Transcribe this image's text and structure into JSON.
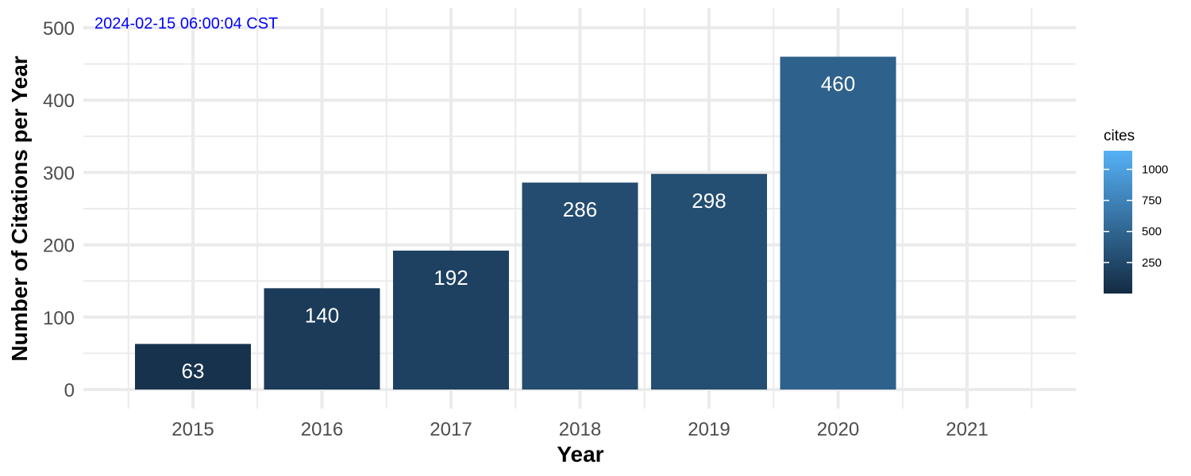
{
  "timestamp": "2024-02-15 06:00:04 CST",
  "colors": {
    "timestamp": "#0000ff",
    "grid": "#ebebeb",
    "bar_label": "#ffffff",
    "scale_low": "#132b43",
    "scale_high": "#56b1f7"
  },
  "chart_data": {
    "type": "bar",
    "title": "",
    "xlabel": "Year",
    "ylabel": "Number of Citations per Year",
    "categories": [
      "2015",
      "2016",
      "2017",
      "2018",
      "2019",
      "2020",
      "2021"
    ],
    "values": [
      63,
      140,
      192,
      286,
      298,
      460,
      null
    ],
    "data_labels": [
      "63",
      "140",
      "192",
      "286",
      "298",
      "460",
      ""
    ],
    "ylim": [
      0,
      500
    ],
    "yticks": [
      0,
      100,
      200,
      300,
      400,
      500
    ],
    "grid": true,
    "legend": {
      "title": "cites",
      "placement": "right",
      "type": "colorbar",
      "range": [
        0,
        1150
      ],
      "ticks": [
        250,
        500,
        750,
        1000
      ],
      "tick_labels": [
        "250",
        "500",
        "750",
        "1000"
      ]
    }
  }
}
